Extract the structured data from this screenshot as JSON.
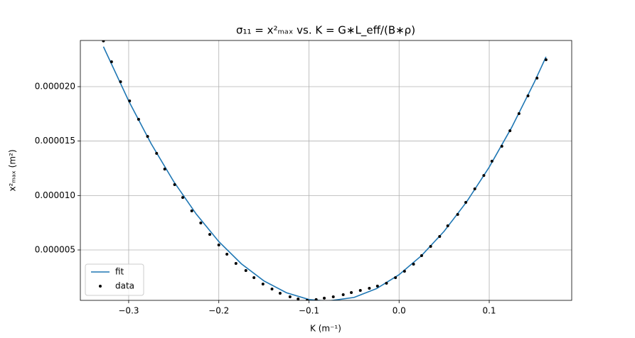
{
  "chart_data": {
    "type": "line",
    "title": "σ₁₁ = x²ₘₐₓ vs. K = G∗L_eff/(B∗ρ)",
    "xlabel": "K (m⁻¹)",
    "ylabel": "x²ₘₐₓ (m²)",
    "xlim": [
      -0.3536,
      0.1915
    ],
    "ylim": [
      3.7e-07,
      2.424e-05
    ],
    "xticks": [
      {
        "value": -0.3,
        "label": "−0.3"
      },
      {
        "value": -0.2,
        "label": "−0.2"
      },
      {
        "value": -0.1,
        "label": "−0.1"
      },
      {
        "value": 0,
        "label": "0.0"
      },
      0.1
    ],
    "yticks": [
      {
        "value": 5e-06,
        "label": "0.000005"
      },
      {
        "value": 1e-05,
        "label": "0.000010"
      },
      {
        "value": 1.5e-05,
        "label": "0.000015"
      },
      {
        "value": 2e-05,
        "label": "0.000020"
      }
    ],
    "grid": true,
    "legend": "lower left",
    "series": [
      {
        "name": "fit",
        "type": "line",
        "color": "#1f77b4",
        "x": [
          -0.328,
          -0.3,
          -0.275,
          -0.25,
          -0.225,
          -0.2,
          -0.175,
          -0.15,
          -0.125,
          -0.1,
          -0.08,
          -0.05,
          -0.025,
          0,
          0.025,
          0.05,
          0.075,
          0.1,
          0.125,
          0.15,
          0.163
        ],
        "values": [
          2.367e-05,
          1.869e-05,
          1.475e-05,
          1.128e-05,
          8.29e-06,
          5.77e-06,
          3.73e-06,
          2.16e-06,
          1.07e-06,
          4.5e-07,
          3e-07,
          6.4e-07,
          1.45e-06,
          2.73e-06,
          4.49e-06,
          6.72e-06,
          9.43e-06,
          1.261e-05,
          1.627e-05,
          2.04e-05,
          2.274e-05
        ]
      },
      {
        "name": "data",
        "type": "scatter",
        "color": "#000000",
        "x": [
          -0.328,
          -0.319,
          -0.309,
          -0.299,
          -0.289,
          -0.279,
          -0.269,
          -0.26,
          -0.249,
          -0.24,
          -0.23,
          -0.22,
          -0.21,
          -0.2,
          -0.191,
          -0.181,
          -0.17,
          -0.161,
          -0.151,
          -0.141,
          -0.132,
          -0.121,
          -0.112,
          -0.102,
          -0.092,
          -0.083,
          -0.073,
          -0.062,
          -0.053,
          -0.043,
          -0.033,
          -0.024,
          -0.014,
          -0.004,
          0.006,
          0.016,
          0.025,
          0.035,
          0.045,
          0.054,
          0.065,
          0.074,
          0.084,
          0.094,
          0.103,
          0.114,
          0.123,
          0.133,
          0.143,
          0.153,
          0.163
        ],
        "values": [
          2.42e-05,
          2.228e-05,
          2.045e-05,
          1.869e-05,
          1.7e-05,
          1.543e-05,
          1.387e-05,
          1.243e-05,
          1.1e-05,
          9.82e-06,
          8.59e-06,
          7.48e-06,
          6.43e-06,
          5.46e-06,
          4.61e-06,
          3.76e-06,
          3.11e-06,
          2.46e-06,
          1.87e-06,
          1.41e-06,
          1.02e-06,
          7e-07,
          5e-07,
          3.7e-07,
          4.4e-07,
          5.7e-07,
          7e-07,
          8.9e-07,
          1.09e-06,
          1.28e-06,
          1.48e-06,
          1.68e-06,
          1.94e-06,
          2.46e-06,
          3.04e-06,
          3.7e-06,
          4.48e-06,
          5.33e-06,
          6.24e-06,
          7.22e-06,
          8.26e-06,
          9.37e-06,
          1.061e-05,
          1.184e-05,
          1.315e-05,
          1.452e-05,
          1.595e-05,
          1.752e-05,
          1.915e-05,
          2.078e-05,
          2.247e-05
        ]
      }
    ]
  }
}
